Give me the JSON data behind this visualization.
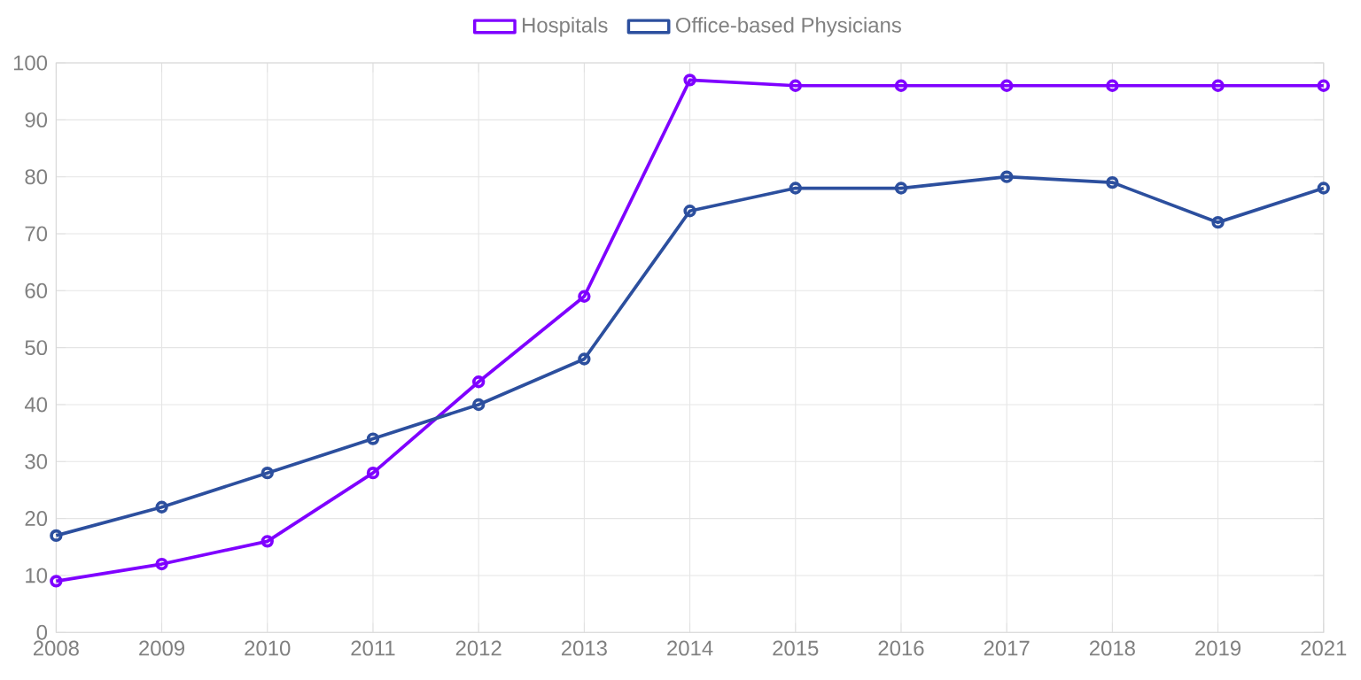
{
  "chart_data": {
    "type": "line",
    "categories": [
      "2008",
      "2009",
      "2010",
      "2011",
      "2012",
      "2013",
      "2014",
      "2015",
      "2016",
      "2017",
      "2018",
      "2019",
      "2021"
    ],
    "series": [
      {
        "name": "Hospitals",
        "color": "#7f00ff",
        "values": [
          9,
          12,
          16,
          28,
          44,
          59,
          97,
          96,
          96,
          96,
          96,
          96,
          96
        ]
      },
      {
        "name": "Office-based Physicians",
        "color": "#2c4f9e",
        "values": [
          17,
          22,
          28,
          34,
          40,
          48,
          74,
          78,
          78,
          80,
          79,
          72,
          78
        ]
      }
    ],
    "ylim": [
      0,
      100
    ],
    "yticks": [
      0,
      10,
      20,
      30,
      40,
      50,
      60,
      70,
      80,
      90,
      100
    ],
    "grid": true,
    "legend": "top",
    "marker": "circle",
    "line_style": "solid"
  }
}
